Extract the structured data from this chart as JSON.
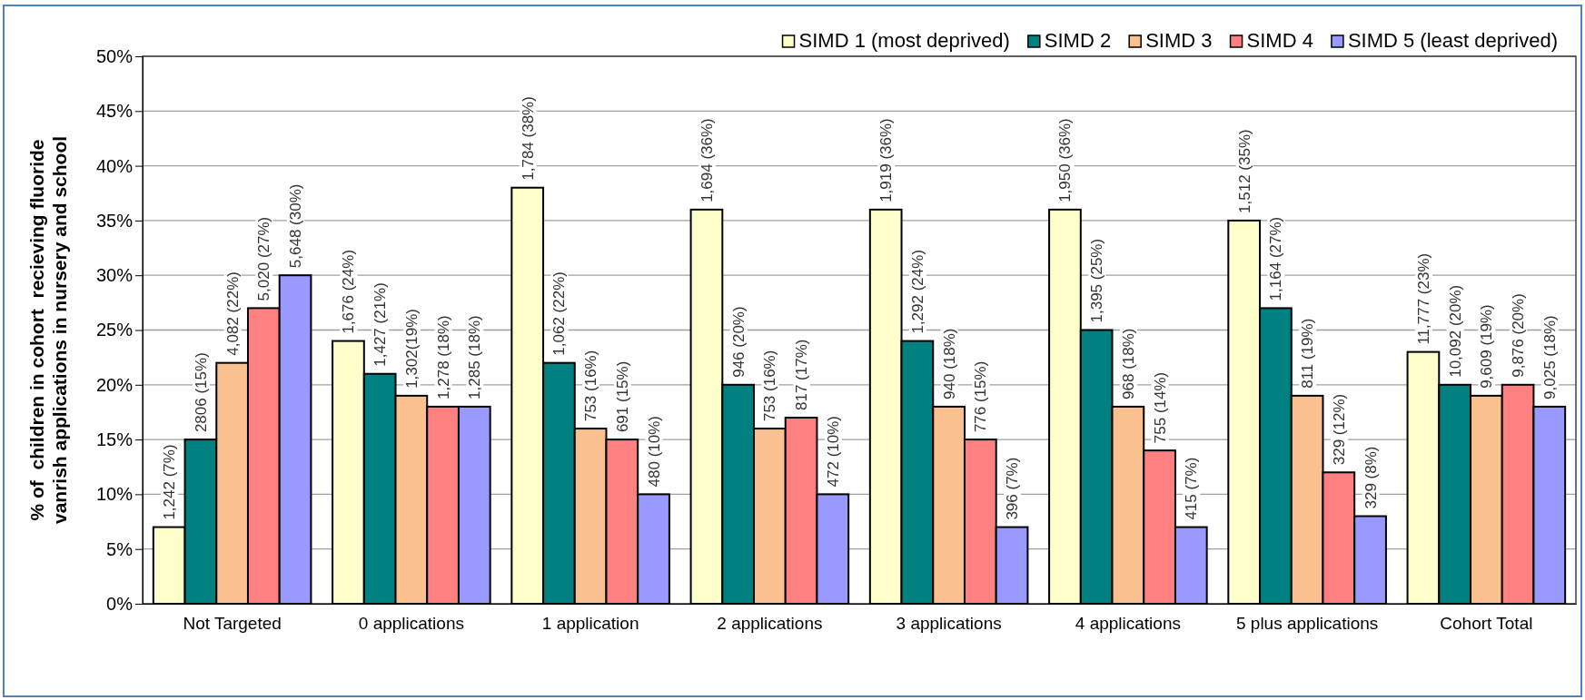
{
  "chart_data": {
    "type": "bar",
    "ylabel": "% of  children in cohort  recieving fluoride vanrish applications in nursery and school",
    "categories": [
      "Not Targeted",
      "0 applications",
      "1 application",
      "2 applications",
      "3 applications",
      "4 applications",
      "5 plus applications",
      "Cohort Total"
    ],
    "series": [
      {
        "name": "SIMD 1 (most deprived)",
        "color": "#ffffcc",
        "values": [
          7,
          24,
          38,
          36,
          36,
          36,
          35,
          23
        ],
        "value_labels": [
          "1,242 (7%)",
          "1,676 (24%)",
          "1,784 (38%)",
          "1,694 (36%)",
          "1,919 (36%)",
          "1,950 (36%)",
          "1,512 (35%)",
          "11,777 (23%)"
        ]
      },
      {
        "name": "SIMD 2",
        "color": "#008080",
        "values": [
          15,
          21,
          22,
          20,
          24,
          25,
          27,
          20
        ],
        "value_labels": [
          "2806 (15%)",
          "1,427 (21%)",
          "1,062 (22%)",
          "946 (20%)",
          "1,292 (24%)",
          "1,395 (25%)",
          "1,164 (27%)",
          "10,092 (20%)"
        ]
      },
      {
        "name": "SIMD 3",
        "color": "#fac090",
        "values": [
          22,
          19,
          16,
          16,
          18,
          18,
          19,
          19
        ],
        "value_labels": [
          "4,082 (22%)",
          "1,302(19%)",
          "753 (16%)",
          "753 (16%)",
          "940 (18%)",
          "968 (18%)",
          "811 (19%)",
          "9,609 (19%)"
        ]
      },
      {
        "name": "SIMD 4",
        "color": "#ff8080",
        "values": [
          27,
          18,
          15,
          17,
          15,
          14,
          12,
          20
        ],
        "value_labels": [
          "5,020 (27%)",
          "1,278 (18%)",
          "691 (15%)",
          "817 (17%)",
          "776 (15%)",
          "755 (14%)",
          "329 (12%)",
          "9,876 (20%)"
        ]
      },
      {
        "name": "SIMD 5 (least deprived)",
        "color": "#9999ff",
        "values": [
          30,
          18,
          10,
          10,
          7,
          7,
          8,
          18
        ],
        "value_labels": [
          "5,648 (30%)",
          "1,285 (18%)",
          "480 (10%)",
          "472 (10%)",
          "396 (7%)",
          "415 (7%)",
          "329 (8%)",
          "9,025 (18%)"
        ]
      }
    ],
    "ylim": [
      0,
      50
    ],
    "yticks": [
      {
        "value": 0,
        "label": "0%"
      },
      {
        "value": 5,
        "label": "5%"
      },
      {
        "value": 10,
        "label": "10%"
      },
      {
        "value": 15,
        "label": "15%"
      },
      {
        "value": 20,
        "label": "20%"
      },
      {
        "value": 25,
        "label": "25%"
      },
      {
        "value": 30,
        "label": "30%"
      },
      {
        "value": 35,
        "label": "35%"
      },
      {
        "value": 40,
        "label": "40%"
      },
      {
        "value": 45,
        "label": "45%"
      },
      {
        "value": 50,
        "label": "50%"
      }
    ],
    "grid": "y",
    "legend": "top right"
  }
}
